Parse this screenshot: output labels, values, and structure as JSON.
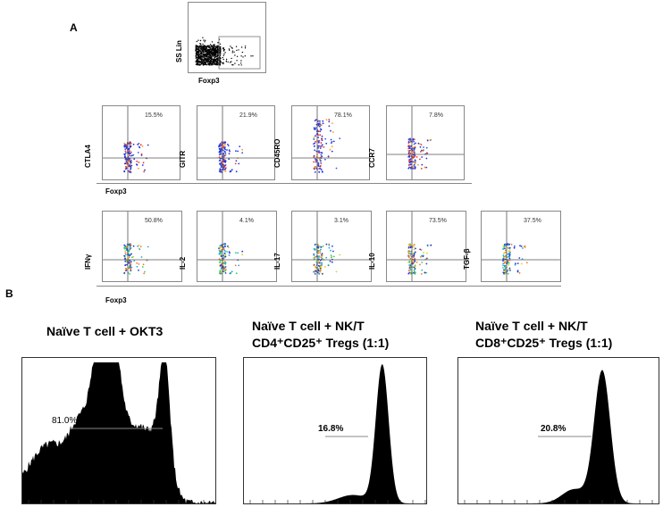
{
  "panels": {
    "a": "A",
    "b": "B"
  },
  "gate_plot": {
    "ylabel": "SS Lin",
    "xlabel": "Foxp3"
  },
  "row1": {
    "xlabel": "Foxp3",
    "plots": [
      {
        "marker": "CTLA4",
        "percent": "15.5%"
      },
      {
        "marker": "GITR",
        "percent": "21.9%"
      },
      {
        "marker": "CD45RO",
        "percent": "78.1%"
      },
      {
        "marker": "CCR7",
        "percent": "7.8%"
      }
    ]
  },
  "row2": {
    "xlabel": "Foxp3",
    "plots": [
      {
        "marker": "IFNγ",
        "percent": "50.8%"
      },
      {
        "marker": "IL-2",
        "percent": "4.1%"
      },
      {
        "marker": "IL-17",
        "percent": "3.1%"
      },
      {
        "marker": "IL-10",
        "percent": "73.5%"
      },
      {
        "marker": "TGF-β",
        "percent": "37.5%"
      }
    ]
  },
  "histograms": [
    {
      "title_line1": "Naïve T cell + OKT3",
      "title_line2": "",
      "gate_percent": "81.0%"
    },
    {
      "title_line1": "Naïve T cell + NK/T",
      "title_line2": "CD4⁺CD25⁺ Tregs (1:1)",
      "gate_percent": "16.8%"
    },
    {
      "title_line1": "Naïve T cell + NK/T",
      "title_line2": "CD8⁺CD25⁺ Tregs (1:1)",
      "gate_percent": "20.8%"
    }
  ]
}
